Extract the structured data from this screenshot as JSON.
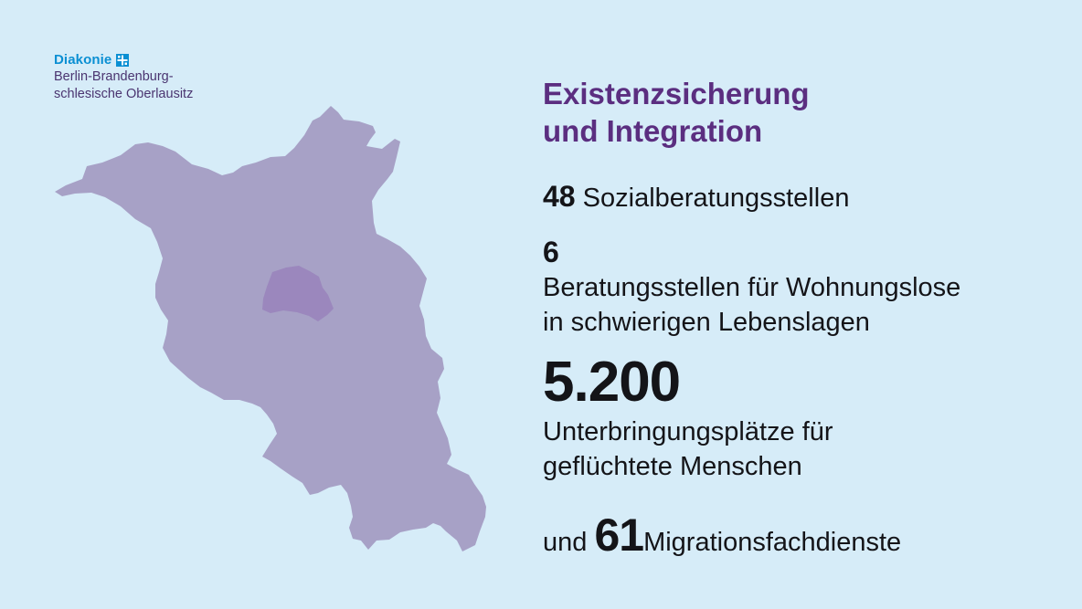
{
  "logo": {
    "brand": "Diakonie",
    "org_line1": "Berlin-Brandenburg-",
    "org_line2": "schlesische Oberlausitz",
    "brand_color": "#0a8fd3",
    "org_color": "#4a3470"
  },
  "map": {
    "region_outer": "brandenburg-shape",
    "region_inner": "berlin-shape",
    "outer_color": "#a7a1c6",
    "inner_color": "#9b87bd"
  },
  "headline": {
    "line1": "Existenzsicherung",
    "line2": "und Integration",
    "color": "#5b2e80"
  },
  "stats": {
    "social": {
      "number": "48",
      "text": "Sozialberatungsstellen"
    },
    "homeless": {
      "number": "6",
      "line1": "Beratungsstellen für Wohnungslose",
      "line2": "in schwierigen Lebenslagen"
    },
    "housing": {
      "number": "5.200",
      "line1": "Unterbringungsplätze für",
      "line2": "geflüchtete Menschen"
    },
    "migration": {
      "prefix": "und",
      "number": "61",
      "text": "Migrationsfachdienste"
    }
  }
}
